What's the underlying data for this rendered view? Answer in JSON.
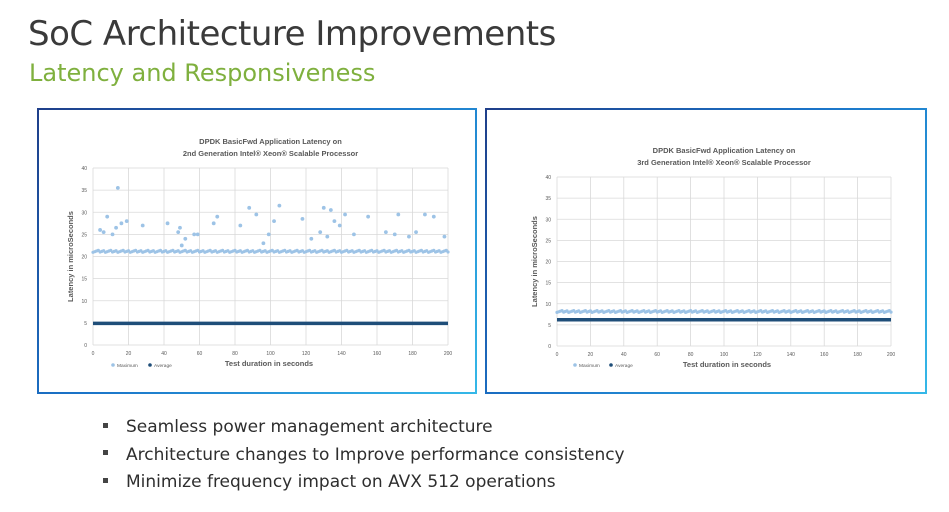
{
  "slide": {
    "title": "SoC Architecture Improvements",
    "subtitle": "Latency and Responsiveness",
    "bullets": [
      "Seamless power management architecture",
      "Architecture changes to Improve  performance consistency",
      "Minimize frequency impact on AVX 512 operations"
    ]
  },
  "colors": {
    "title": "#3a3a3a",
    "subtitle": "#7fb03e",
    "maximum": "#9dc3e6",
    "average": "#1f4e79",
    "grid": "#d9d9d9",
    "panel_border": "#1a73c8"
  },
  "chart_data": [
    {
      "type": "scatter",
      "title_line1": "DPDK BasicFwd Application Latency on",
      "title_line2": "2nd Generation Intel® Xeon® Scalable Processor",
      "xlabel": "Test duration in seconds",
      "ylabel": "Latency in microSeconds",
      "xlim": [
        0,
        200
      ],
      "ylim": [
        0,
        40
      ],
      "xticks": [
        0,
        20,
        40,
        60,
        80,
        100,
        120,
        140,
        160,
        180,
        200
      ],
      "yticks": [
        0,
        5,
        10,
        15,
        20,
        25,
        30,
        35,
        40
      ],
      "legend": [
        "Maximum",
        "Average"
      ],
      "series": [
        {
          "name": "Maximum",
          "baseline": 21.2,
          "outliers": [
            {
              "x": 4,
              "y": 26
            },
            {
              "x": 6,
              "y": 25.5
            },
            {
              "x": 8,
              "y": 29
            },
            {
              "x": 11,
              "y": 25
            },
            {
              "x": 13,
              "y": 26.5
            },
            {
              "x": 14,
              "y": 35.5
            },
            {
              "x": 16,
              "y": 27.5
            },
            {
              "x": 19,
              "y": 28
            },
            {
              "x": 28,
              "y": 27
            },
            {
              "x": 42,
              "y": 27.5
            },
            {
              "x": 48,
              "y": 25.5
            },
            {
              "x": 49,
              "y": 26.5
            },
            {
              "x": 50,
              "y": 22.5
            },
            {
              "x": 52,
              "y": 24
            },
            {
              "x": 57,
              "y": 25
            },
            {
              "x": 59,
              "y": 25
            },
            {
              "x": 68,
              "y": 27.5
            },
            {
              "x": 70,
              "y": 29
            },
            {
              "x": 83,
              "y": 27
            },
            {
              "x": 88,
              "y": 31
            },
            {
              "x": 92,
              "y": 29.5
            },
            {
              "x": 96,
              "y": 23
            },
            {
              "x": 99,
              "y": 25
            },
            {
              "x": 102,
              "y": 28
            },
            {
              "x": 105,
              "y": 31.5
            },
            {
              "x": 118,
              "y": 28.5
            },
            {
              "x": 123,
              "y": 24
            },
            {
              "x": 128,
              "y": 25.5
            },
            {
              "x": 130,
              "y": 31
            },
            {
              "x": 132,
              "y": 24.5
            },
            {
              "x": 134,
              "y": 30.5
            },
            {
              "x": 136,
              "y": 28
            },
            {
              "x": 139,
              "y": 27
            },
            {
              "x": 142,
              "y": 29.5
            },
            {
              "x": 147,
              "y": 25
            },
            {
              "x": 155,
              "y": 29
            },
            {
              "x": 165,
              "y": 25.5
            },
            {
              "x": 170,
              "y": 25
            },
            {
              "x": 172,
              "y": 29.5
            },
            {
              "x": 178,
              "y": 24.5
            },
            {
              "x": 182,
              "y": 25.5
            },
            {
              "x": 187,
              "y": 29.5
            },
            {
              "x": 192,
              "y": 29
            },
            {
              "x": 198,
              "y": 24.5
            }
          ]
        },
        {
          "name": "Average",
          "value": 4.9
        }
      ]
    },
    {
      "type": "scatter",
      "title_line1": "DPDK BasicFwd Application Latency on",
      "title_line2": "3rd Generation Intel® Xeon® Scalable Processor",
      "xlabel": "Test duration in seconds",
      "ylabel": "Latency in microSeconds",
      "xlim": [
        0,
        200
      ],
      "ylim": [
        0,
        40
      ],
      "xticks": [
        0,
        20,
        40,
        60,
        80,
        100,
        120,
        140,
        160,
        180,
        200
      ],
      "yticks": [
        0,
        5,
        10,
        15,
        20,
        25,
        30,
        35,
        40
      ],
      "legend": [
        "Maximum",
        "Average"
      ],
      "series": [
        {
          "name": "Maximum",
          "baseline": 8.2,
          "outliers": []
        },
        {
          "name": "Average",
          "value": 6.2
        }
      ]
    }
  ]
}
